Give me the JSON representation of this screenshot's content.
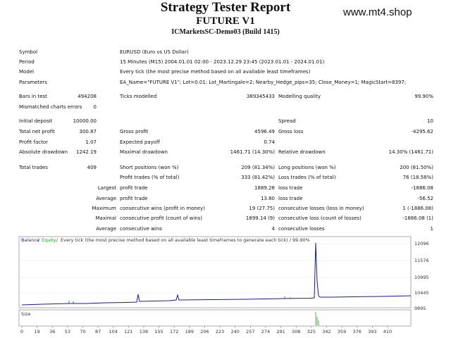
{
  "header": {
    "title": "Strategy Tester Report",
    "subtitle": "FUTURE V1",
    "server": "ICMarketsSC-Demo03 (Build 1415)",
    "watermark": "www.mt4.shop"
  },
  "info": [
    {
      "label": "Symbol",
      "value": "EURUSD (Euro vs US Dollar)"
    },
    {
      "label": "Period",
      "value": "15 Minutes (M15) 2004.01.01 02:00 - 2023.12.29 23:45 (2023.01.01 - 2024.01.01)"
    },
    {
      "label": "Model",
      "value": "Every tick (the most precise method based on all available least timeframes)"
    },
    {
      "label": "Parameters",
      "value": "EA_Name=\"FUTURE V1\"; Lot=0.01; Lot_Martingale=2; Nearby_Hedge_pips=35; Close_Money=1; MagicStart=8397;"
    }
  ],
  "stats": [
    {
      "label1": "Bars in test",
      "value1": "494208",
      "label2": "Ticks modelled",
      "value2": "389345433",
      "label3": "Modelling quality",
      "value3": "99.90%"
    },
    {
      "label1": "Mismatched charts errors",
      "value1": "0"
    },
    {
      "label1": "Initial deposit",
      "value1": "10000.00",
      "label3": "Spread",
      "value3": "10"
    },
    {
      "label1": "Total net profit",
      "value1": "300.87",
      "label2": "Gross profit",
      "value2": "4596.49",
      "label3": "Gross loss",
      "value3": "-4295.62"
    },
    {
      "label1": "Profit factor",
      "value1": "1.07",
      "label2": "Expected payoff",
      "value2": "0.74"
    },
    {
      "label1": "Absolute drawdown",
      "value1": "1242.19",
      "label2": "Maximal drawdown",
      "value2": "1461.71 (14.30%)",
      "label3": "Relative drawdown",
      "value3": "14.30% (1461.71)"
    },
    {
      "label1": "Total trades",
      "value1": "409",
      "label2": "Short positions (won %)",
      "value2": "209 (81.34%)",
      "label3": "Long positions (won %)",
      "value3": "200 (81.50%)"
    }
  ],
  "trades": [
    {
      "profit_label": "Profit trades (% of total)",
      "profit_value": "333 (81.42%)",
      "loss_label": "Loss trades (% of total)",
      "loss_value": "76 (18.58%)"
    },
    {
      "qualifier": "Largest",
      "profit_label": "profit trade",
      "profit_value": "1889.28",
      "loss_label": "loss trade",
      "loss_value": "-1886.08"
    },
    {
      "qualifier": "Average",
      "profit_label": "profit trade",
      "profit_value": "13.80",
      "loss_label": "loss trade",
      "loss_value": "-56.52"
    },
    {
      "qualifier": "Maximum",
      "profit_label": "consecutive wins (profit in money)",
      "profit_value": "19 (27.75)",
      "loss_label": "consecutive losses (loss in money)",
      "loss_value": "1 (-1886.08)"
    },
    {
      "qualifier": "Maximal",
      "profit_label": "consecutive profit (count of wins)",
      "profit_value": "1899.14 (9)",
      "loss_label": "consecutive loss (count of losses)",
      "loss_value": "-1886.08 (1)"
    },
    {
      "qualifier": "Average",
      "profit_label": "consecutive wins",
      "profit_value": "4",
      "loss_label": "consecutive losses",
      "loss_value": "1"
    }
  ],
  "graph": {
    "legend_balance": "Balance",
    "legend_equity": "Equity",
    "legend_description": "Every tick (the most precise method based on all available least timeframes to generate each tick) / 99.90%",
    "size_label": "Size",
    "y_ticks": [
      "12096",
      "11576",
      "10995",
      "10445",
      "9895"
    ],
    "x_ticks": [
      "0",
      "19",
      "36",
      "53",
      "70",
      "87",
      "104",
      "121",
      "138",
      "155",
      "172",
      "189",
      "206",
      "223",
      "240",
      "257",
      "274",
      "291",
      "308",
      "325",
      "342",
      "359",
      "376",
      "393",
      "410"
    ]
  }
}
